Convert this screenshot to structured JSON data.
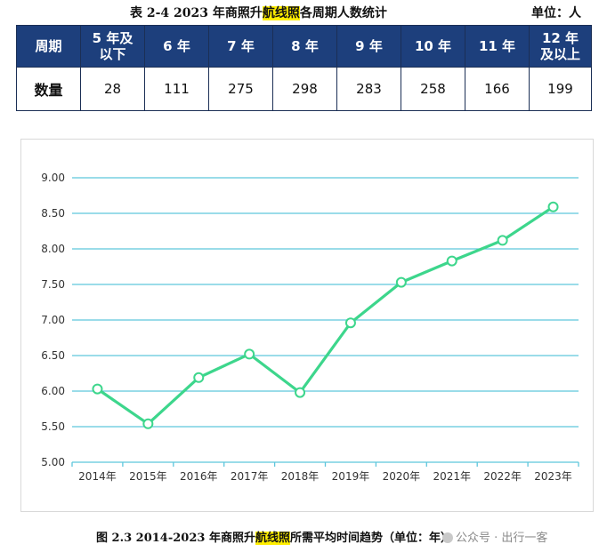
{
  "table": {
    "title_prefix": "表 2-4 2023 年商照升",
    "title_highlight": "航线照",
    "title_suffix": "各周期人数统计",
    "unit": "单位：人",
    "header_label": "周期",
    "columns": [
      "5 年及\n以下",
      "6 年",
      "7 年",
      "8 年",
      "9 年",
      "10 年",
      "11 年",
      "12 年\n及以上"
    ],
    "row_label": "数量",
    "values": [
      "28",
      "111",
      "275",
      "298",
      "283",
      "258",
      "166",
      "199"
    ]
  },
  "figure": {
    "caption_prefix": "图 2.3 2014-2023 年商照升",
    "caption_highlight": "航线照",
    "caption_suffix": "所需平均时间趋势（单位：年）",
    "watermark": "公众号 · 出行一客"
  },
  "chart_data": {
    "type": "line",
    "title": "",
    "xlabel": "",
    "ylabel": "",
    "categories": [
      "2014年",
      "2015年",
      "2016年",
      "2017年",
      "2018年",
      "2019年",
      "2020年",
      "2021年",
      "2022年",
      "2023年"
    ],
    "series": [
      {
        "values": [
          6.03,
          5.54,
          6.19,
          6.52,
          5.98,
          6.96,
          7.53,
          7.83,
          8.12,
          8.59
        ]
      }
    ],
    "ylim": [
      5.0,
      9.0
    ],
    "yticks": [
      "5.00",
      "5.50",
      "6.00",
      "6.50",
      "7.00",
      "7.50",
      "8.00",
      "8.50",
      "9.00"
    ],
    "grid": true,
    "legend": "none",
    "colors": {
      "line": "#3dd68c",
      "grid": "#5ec6dc",
      "axis": "#5ec6dc",
      "marker_fill": "#ffffff"
    }
  }
}
